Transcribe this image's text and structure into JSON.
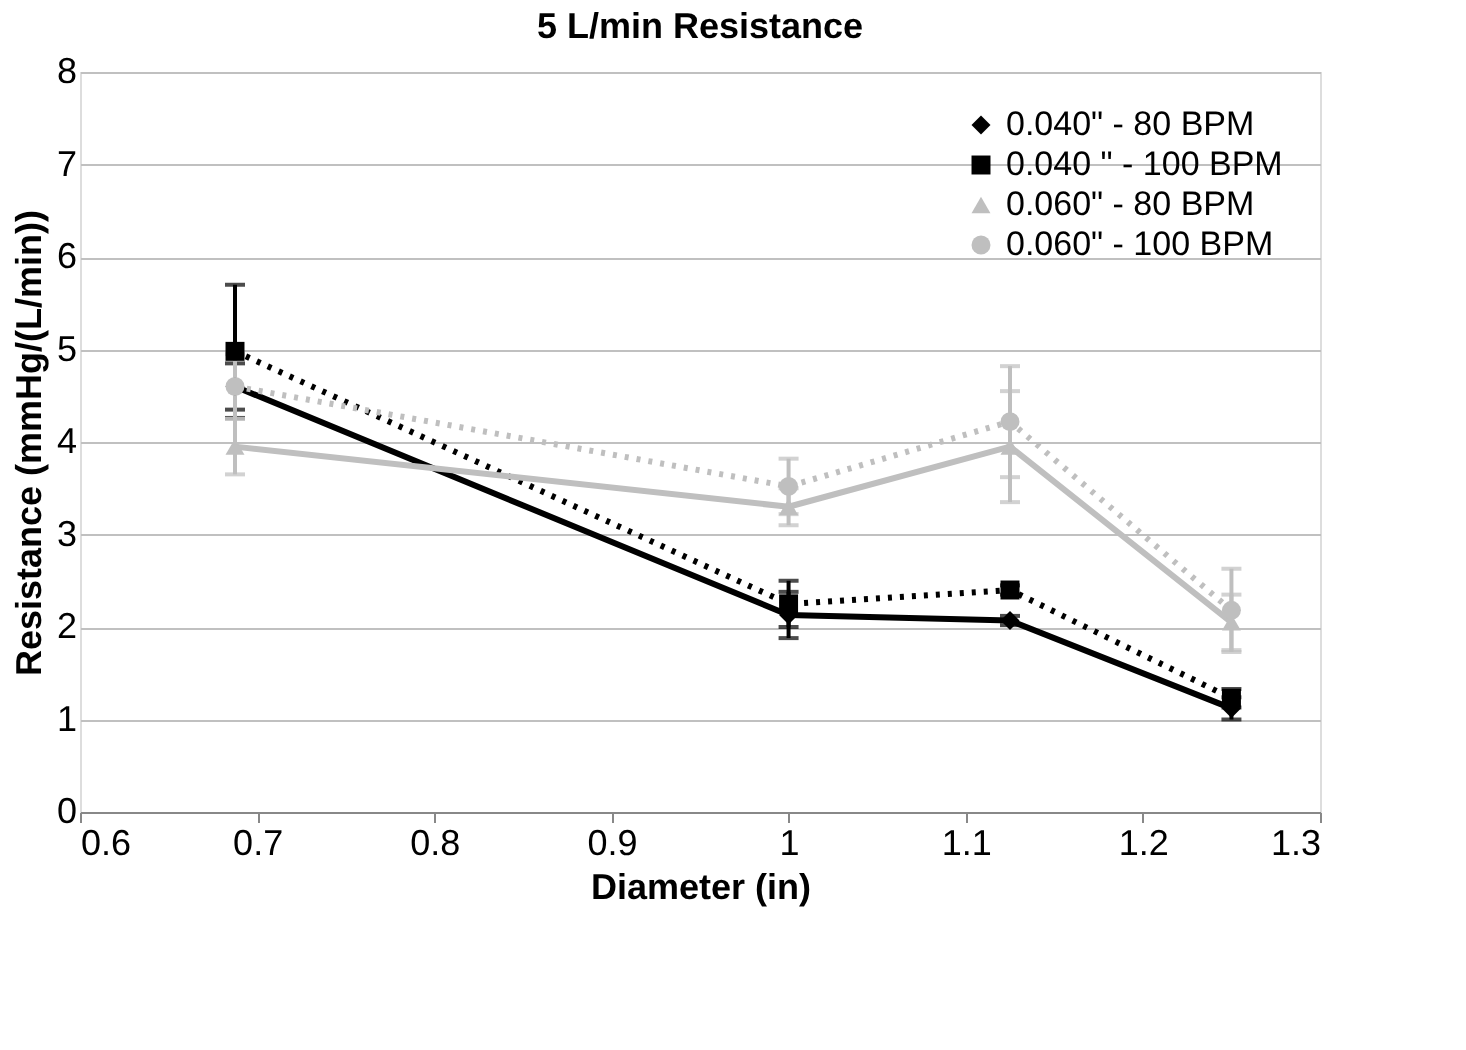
{
  "chart_data": {
    "type": "line",
    "title": "5 L/min Resistance",
    "xlabel": "Diameter (in)",
    "ylabel": "Resistance (mmHg/(L/min))",
    "x": [
      0.6875,
      1.0,
      1.125,
      1.25
    ],
    "series": [
      {
        "name": "0.040\" - 80 BPM",
        "color": "#000000",
        "marker": "diamond",
        "line_style": "solid",
        "values": [
          4.6,
          2.13,
          2.07,
          1.12
        ],
        "errors": [
          0.25,
          0.25,
          0.05,
          0.12
        ]
      },
      {
        "name": "0.040 \" - 100 BPM",
        "color": "#000000",
        "marker": "square",
        "line_style": "dotted",
        "values": [
          4.98,
          2.25,
          2.4,
          1.23
        ],
        "errors": [
          0.72,
          0.25,
          0.05,
          0.1
        ]
      },
      {
        "name": "0.060\" - 80 BPM",
        "color": "#bfbfbf",
        "marker": "triangle",
        "line_style": "solid",
        "values": [
          3.95,
          3.3,
          3.95,
          2.05
        ],
        "errors": [
          0.3,
          0.2,
          0.6,
          0.3
        ]
      },
      {
        "name": "0.060\" - 100 BPM",
        "color": "#bfbfbf",
        "marker": "circle",
        "line_style": "dotted",
        "values": [
          4.6,
          3.52,
          4.22,
          2.18
        ],
        "errors": [
          0.35,
          0.3,
          0.6,
          0.45
        ]
      }
    ],
    "xlim": [
      0.6,
      1.3
    ],
    "xticks": [
      0.6,
      0.7,
      0.8,
      0.9,
      1,
      1.1,
      1.2,
      1.3
    ],
    "ylim": [
      0,
      8
    ],
    "yticks": [
      0,
      1,
      2,
      3,
      4,
      5,
      6,
      7,
      8
    ],
    "grid": "y",
    "legend": "top right"
  }
}
